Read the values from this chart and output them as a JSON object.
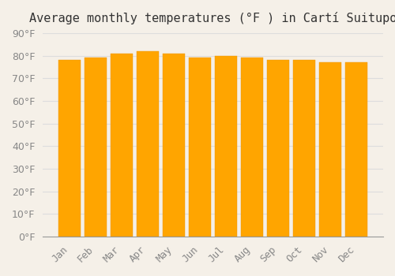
{
  "title": "Average monthly temperatures (°F ) in Cartí Suitupo",
  "months": [
    "Jan",
    "Feb",
    "Mar",
    "Apr",
    "May",
    "Jun",
    "Jul",
    "Aug",
    "Sep",
    "Oct",
    "Nov",
    "Dec"
  ],
  "values": [
    78,
    79,
    81,
    82,
    81,
    79,
    80,
    79,
    78,
    78,
    77,
    77
  ],
  "bar_color": "#FFA500",
  "bar_edge_color": "#E8940A",
  "background_color": "#F5F0E8",
  "ylim": [
    0,
    90
  ],
  "yticks": [
    0,
    10,
    20,
    30,
    40,
    50,
    60,
    70,
    80,
    90
  ],
  "grid_color": "#DDDDDD",
  "title_fontsize": 11,
  "tick_fontsize": 9,
  "font_family": "monospace"
}
